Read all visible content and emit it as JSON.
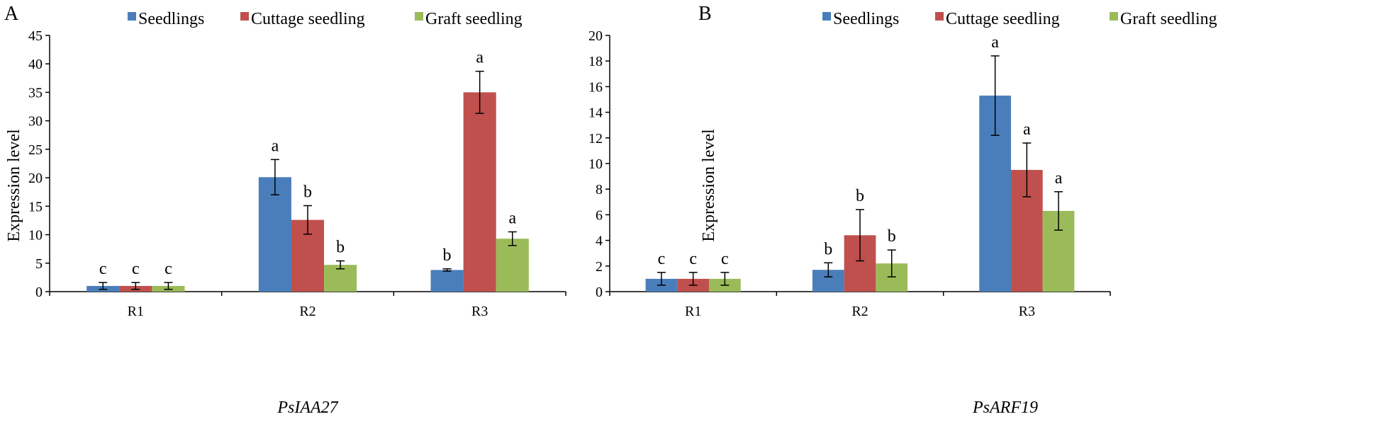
{
  "legend": [
    {
      "name": "Seedlings",
      "color": "#4a7ebb"
    },
    {
      "name": "Cuttage seedling",
      "color": "#c0504d"
    },
    {
      "name": "Graft seedling",
      "color": "#9bbb59"
    }
  ],
  "chart_data": [
    {
      "type": "bar",
      "panel_label": "A",
      "title": "",
      "xlabel": "PsIAA27",
      "ylabel": "Expression level",
      "categories": [
        "R1",
        "R2",
        "R3"
      ],
      "ylim": [
        0,
        45
      ],
      "yticks": [
        0,
        5,
        10,
        15,
        20,
        25,
        30,
        35,
        40,
        45
      ],
      "series": [
        {
          "name": "Seedlings",
          "values": [
            1.0,
            20.1,
            3.8
          ],
          "errors": [
            0.6,
            3.1,
            0.2
          ],
          "letters": [
            "c",
            "a",
            "b"
          ]
        },
        {
          "name": "Cuttage seedling",
          "values": [
            1.0,
            12.6,
            35.0
          ],
          "errors": [
            0.6,
            2.5,
            3.7
          ],
          "letters": [
            "c",
            "b",
            "a"
          ]
        },
        {
          "name": "Graft seedling",
          "values": [
            1.0,
            4.7,
            9.3
          ],
          "errors": [
            0.6,
            0.7,
            1.2
          ],
          "letters": [
            "c",
            "b",
            "a"
          ]
        }
      ]
    },
    {
      "type": "bar",
      "panel_label": "B",
      "title": "",
      "xlabel": "PsARF19",
      "ylabel": "Expression level",
      "categories": [
        "R1",
        "R2",
        "R3"
      ],
      "ylim": [
        0,
        20
      ],
      "yticks": [
        0,
        2,
        4,
        6,
        8,
        10,
        12,
        14,
        16,
        18,
        20
      ],
      "series": [
        {
          "name": "Seedlings",
          "values": [
            1.0,
            1.7,
            15.3
          ],
          "errors": [
            0.5,
            0.55,
            3.1
          ],
          "letters": [
            "c",
            "b",
            "a"
          ]
        },
        {
          "name": "Cuttage seedling",
          "values": [
            1.0,
            4.4,
            9.5
          ],
          "errors": [
            0.5,
            2.0,
            2.1
          ],
          "letters": [
            "c",
            "b",
            "a"
          ]
        },
        {
          "name": "Graft seedling",
          "values": [
            1.0,
            2.2,
            6.3
          ],
          "errors": [
            0.5,
            1.05,
            1.5
          ],
          "letters": [
            "c",
            "b",
            "a"
          ]
        }
      ]
    }
  ]
}
